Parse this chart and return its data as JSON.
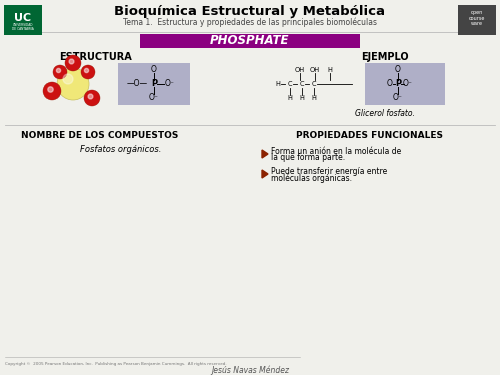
{
  "bg_color": "#f0f0eb",
  "title": "Bioquímica Estructural y Metabólica",
  "subtitle": "Tema 1.  Estructura y propiedades de las principales biomoléculas",
  "banner_text": "PHOSPHATE",
  "banner_color": "#8B0080",
  "banner_text_color": "#ffffff",
  "section1_title": "ESTRUCTURA",
  "section2_title": "EJEMPLO",
  "section3_title": "NOMBRE DE LOS COMPUESTOS",
  "section4_title": "PROPIEDADES FUNCIONALES",
  "compound_name": "Fosfatos orgánicos.",
  "example_caption": "Glicerol fosfato.",
  "prop1_line1": "Forma un anión en la molécula de",
  "prop1_line2": "la que forma parte.",
  "prop2_line1": "Puede transferir energía entre",
  "prop2_line2": "moléculas orgánicas.",
  "copyright": "Copyright ©  2005 Pearson Education, Inc.  Publishing as Pearson Benjamin Cummings.  All rights reserved.",
  "author": "Jesús Navas Méndez",
  "purple_box_color": "#9999bb",
  "bullet_color": "#8B2200",
  "uc_green": "#006633",
  "ocw_dark": "#444444"
}
